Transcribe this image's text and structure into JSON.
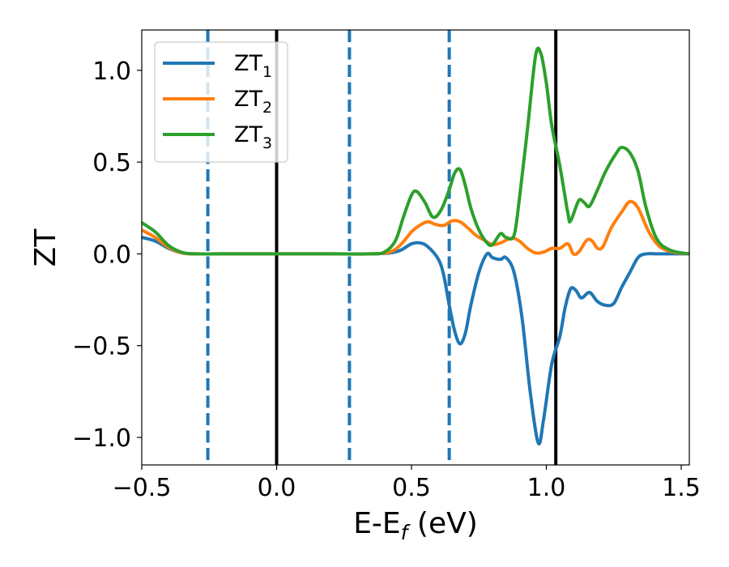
{
  "chart_data": {
    "type": "line",
    "title": "",
    "xlabel": {
      "main": "E-E",
      "sub": "f",
      "suffix": " (eV)"
    },
    "ylabel": "ZT",
    "xlim": [
      -0.5,
      1.53
    ],
    "ylim": [
      -1.15,
      1.22
    ],
    "xticks": [
      -0.5,
      0.0,
      0.5,
      1.0,
      1.5
    ],
    "xtick_labels": [
      "−0.5",
      "0.0",
      "0.5",
      "1.0",
      "1.5"
    ],
    "yticks": [
      -1.0,
      -0.5,
      0.0,
      0.5,
      1.0
    ],
    "ytick_labels": [
      "−1.0",
      "−0.5",
      "0.0",
      "0.5",
      "1.0"
    ],
    "grid": false,
    "legend_position": "top-left",
    "series": [
      {
        "name": "ZT",
        "sub": "1",
        "color": "#1f77b4",
        "points": [
          [
            -0.5,
            0.09
          ],
          [
            -0.45,
            0.07
          ],
          [
            -0.4,
            0.03
          ],
          [
            -0.35,
            0.005
          ],
          [
            -0.3,
            0.0
          ],
          [
            -0.2,
            0.0
          ],
          [
            0.0,
            0.0
          ],
          [
            0.2,
            0.0
          ],
          [
            0.35,
            0.0
          ],
          [
            0.42,
            0.005
          ],
          [
            0.46,
            0.02
          ],
          [
            0.5,
            0.055
          ],
          [
            0.53,
            0.06
          ],
          [
            0.56,
            0.04
          ],
          [
            0.6,
            -0.03
          ],
          [
            0.62,
            -0.12
          ],
          [
            0.64,
            -0.28
          ],
          [
            0.66,
            -0.42
          ],
          [
            0.68,
            -0.49
          ],
          [
            0.7,
            -0.43
          ],
          [
            0.72,
            -0.28
          ],
          [
            0.75,
            -0.1
          ],
          [
            0.78,
            0.0
          ],
          [
            0.8,
            -0.02
          ],
          [
            0.83,
            -0.03
          ],
          [
            0.85,
            -0.02
          ],
          [
            0.88,
            -0.1
          ],
          [
            0.91,
            -0.35
          ],
          [
            0.94,
            -0.75
          ],
          [
            0.97,
            -1.03
          ],
          [
            0.99,
            -0.9
          ],
          [
            1.02,
            -0.6
          ],
          [
            1.05,
            -0.45
          ],
          [
            1.07,
            -0.29
          ],
          [
            1.09,
            -0.19
          ],
          [
            1.11,
            -0.2
          ],
          [
            1.13,
            -0.24
          ],
          [
            1.16,
            -0.21
          ],
          [
            1.19,
            -0.26
          ],
          [
            1.22,
            -0.28
          ],
          [
            1.25,
            -0.27
          ],
          [
            1.28,
            -0.18
          ],
          [
            1.31,
            -0.1
          ],
          [
            1.34,
            -0.02
          ],
          [
            1.37,
            0.0
          ],
          [
            1.42,
            0.0
          ],
          [
            1.53,
            0.0
          ]
        ]
      },
      {
        "name": "ZT",
        "sub": "2",
        "color": "#ff7f0e",
        "points": [
          [
            -0.5,
            0.13
          ],
          [
            -0.45,
            0.09
          ],
          [
            -0.4,
            0.035
          ],
          [
            -0.35,
            0.005
          ],
          [
            -0.3,
            0.0
          ],
          [
            -0.2,
            0.0
          ],
          [
            0.0,
            0.0
          ],
          [
            0.2,
            0.0
          ],
          [
            0.35,
            0.0
          ],
          [
            0.42,
            0.01
          ],
          [
            0.46,
            0.05
          ],
          [
            0.5,
            0.12
          ],
          [
            0.53,
            0.155
          ],
          [
            0.56,
            0.175
          ],
          [
            0.59,
            0.16
          ],
          [
            0.62,
            0.155
          ],
          [
            0.65,
            0.18
          ],
          [
            0.68,
            0.175
          ],
          [
            0.71,
            0.14
          ],
          [
            0.74,
            0.1
          ],
          [
            0.77,
            0.075
          ],
          [
            0.8,
            0.05
          ],
          [
            0.83,
            0.06
          ],
          [
            0.87,
            0.085
          ],
          [
            0.9,
            0.07
          ],
          [
            0.93,
            0.03
          ],
          [
            0.96,
            0.005
          ],
          [
            0.99,
            0.01
          ],
          [
            1.02,
            0.03
          ],
          [
            1.05,
            0.03
          ],
          [
            1.08,
            0.055
          ],
          [
            1.1,
            0.0
          ],
          [
            1.12,
            0.01
          ],
          [
            1.15,
            0.075
          ],
          [
            1.17,
            0.07
          ],
          [
            1.19,
            0.03
          ],
          [
            1.21,
            0.04
          ],
          [
            1.24,
            0.14
          ],
          [
            1.28,
            0.23
          ],
          [
            1.31,
            0.285
          ],
          [
            1.34,
            0.25
          ],
          [
            1.38,
            0.12
          ],
          [
            1.42,
            0.04
          ],
          [
            1.47,
            0.01
          ],
          [
            1.53,
            0.0
          ]
        ]
      },
      {
        "name": "ZT",
        "sub": "3",
        "color": "#2ca02c",
        "points": [
          [
            -0.5,
            0.17
          ],
          [
            -0.45,
            0.12
          ],
          [
            -0.4,
            0.045
          ],
          [
            -0.35,
            0.008
          ],
          [
            -0.3,
            0.0
          ],
          [
            -0.2,
            0.0
          ],
          [
            0.0,
            0.0
          ],
          [
            0.2,
            0.0
          ],
          [
            0.35,
            0.0
          ],
          [
            0.4,
            0.01
          ],
          [
            0.44,
            0.07
          ],
          [
            0.47,
            0.2
          ],
          [
            0.5,
            0.32
          ],
          [
            0.52,
            0.34
          ],
          [
            0.55,
            0.28
          ],
          [
            0.58,
            0.2
          ],
          [
            0.61,
            0.24
          ],
          [
            0.64,
            0.35
          ],
          [
            0.66,
            0.44
          ],
          [
            0.68,
            0.46
          ],
          [
            0.7,
            0.37
          ],
          [
            0.72,
            0.25
          ],
          [
            0.75,
            0.13
          ],
          [
            0.78,
            0.06
          ],
          [
            0.8,
            0.05
          ],
          [
            0.83,
            0.11
          ],
          [
            0.85,
            0.09
          ],
          [
            0.88,
            0.1
          ],
          [
            0.9,
            0.3
          ],
          [
            0.93,
            0.68
          ],
          [
            0.96,
            1.08
          ],
          [
            0.98,
            1.09
          ],
          [
            1.0,
            0.93
          ],
          [
            1.02,
            0.7
          ],
          [
            1.05,
            0.48
          ],
          [
            1.08,
            0.22
          ],
          [
            1.09,
            0.18
          ],
          [
            1.12,
            0.29
          ],
          [
            1.14,
            0.28
          ],
          [
            1.16,
            0.26
          ],
          [
            1.19,
            0.35
          ],
          [
            1.22,
            0.45
          ],
          [
            1.26,
            0.55
          ],
          [
            1.28,
            0.58
          ],
          [
            1.31,
            0.55
          ],
          [
            1.34,
            0.45
          ],
          [
            1.37,
            0.25
          ],
          [
            1.41,
            0.08
          ],
          [
            1.46,
            0.02
          ],
          [
            1.53,
            0.0
          ]
        ]
      }
    ],
    "vlines": [
      {
        "x": -0.255,
        "style": "dashed",
        "color": "#1f77b4"
      },
      {
        "x": 0.0,
        "style": "solid",
        "color": "#000000"
      },
      {
        "x": 0.27,
        "style": "dashed",
        "color": "#1f77b4"
      },
      {
        "x": 0.64,
        "style": "dashed",
        "color": "#1f77b4"
      },
      {
        "x": 1.035,
        "style": "solid",
        "color": "#000000"
      }
    ]
  }
}
